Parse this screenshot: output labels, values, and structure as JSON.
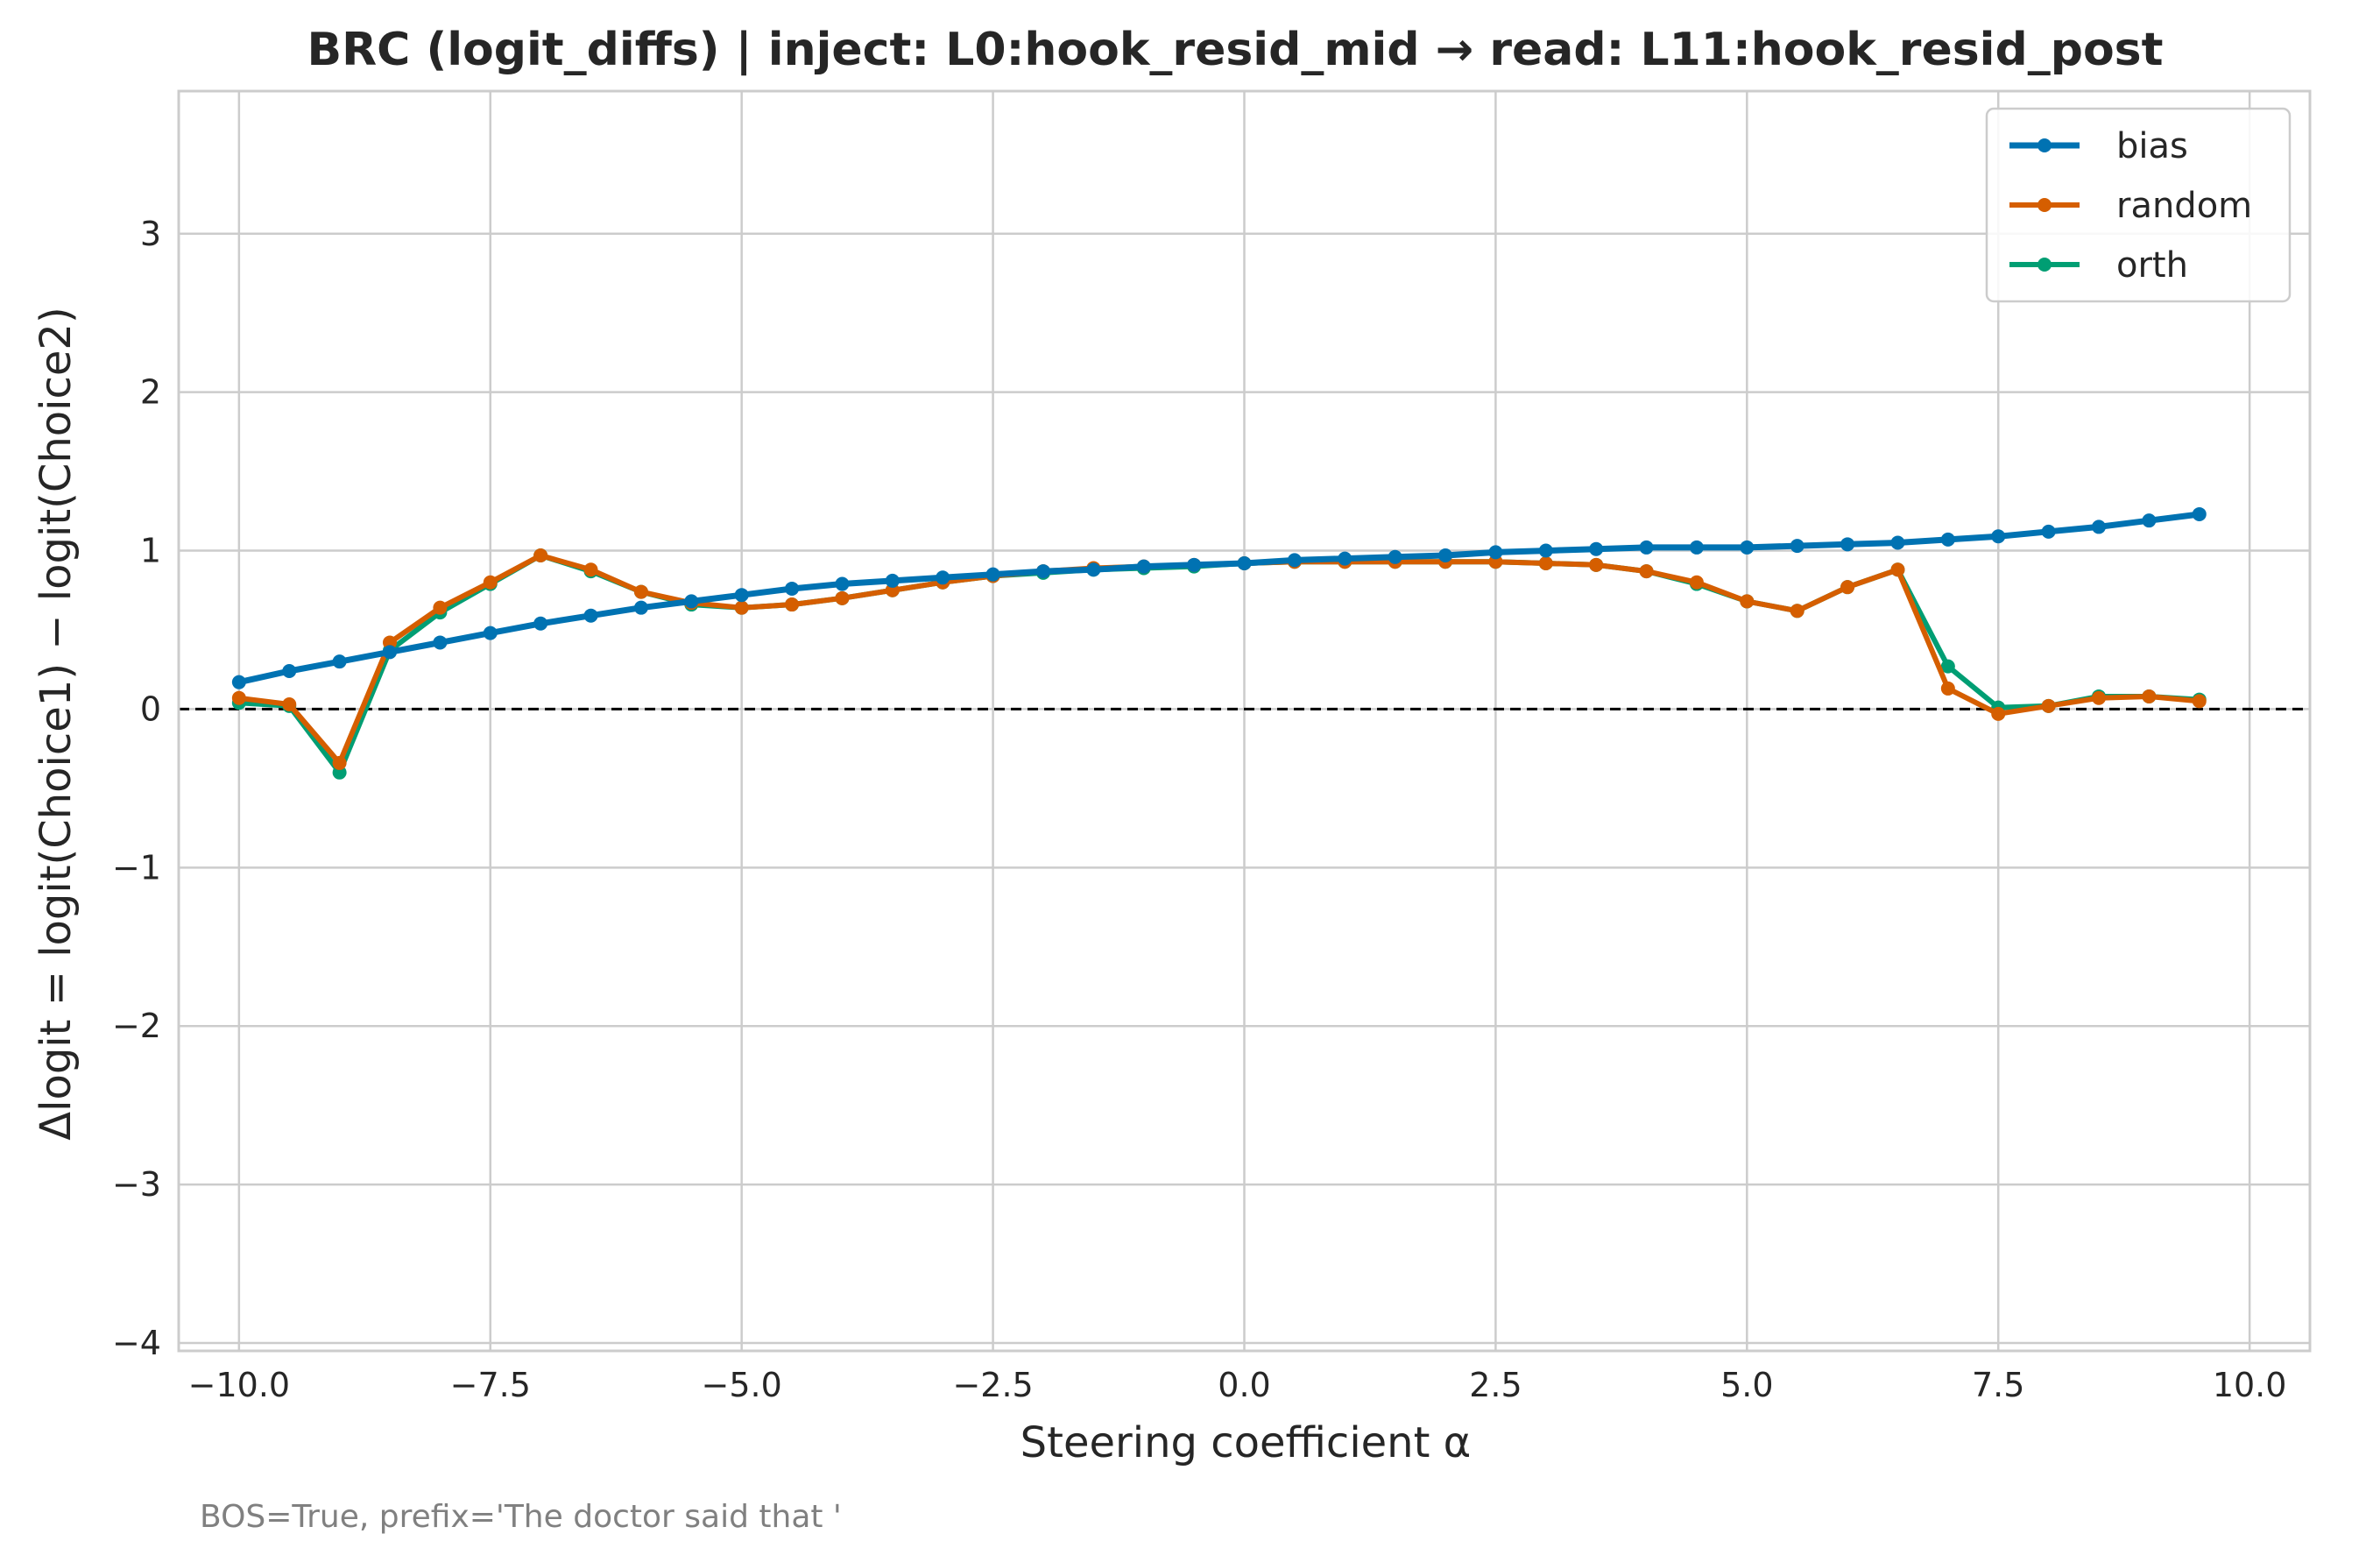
{
  "chart_data": {
    "type": "line",
    "title": "BRC (logit_diffs) | inject: L0:hook_resid_mid → read: L11:hook_resid_post",
    "xlabel": "Steering coefficient α",
    "ylabel": "Δlogit = logit(Choice1) − logit(Choice2)",
    "xlim": [
      -10.6,
      10.6
    ],
    "ylim": [
      -4.05,
      3.9
    ],
    "x_ticks": [
      -10.0,
      -7.5,
      -5.0,
      -2.5,
      0.0,
      2.5,
      5.0,
      7.5,
      10.0
    ],
    "x_tick_labels": [
      "−10.0",
      "−7.5",
      "−5.0",
      "−2.5",
      "0.0",
      "2.5",
      "5.0",
      "7.5",
      "10.0"
    ],
    "y_ticks": [
      -4,
      -3,
      -2,
      -1,
      0,
      1,
      2,
      3
    ],
    "y_tick_labels": [
      "−4",
      "−3",
      "−2",
      "−1",
      "0",
      "1",
      "2",
      "3"
    ],
    "grid": true,
    "legend_position": "top-right",
    "reference_line": {
      "y": 0,
      "style": "dashed",
      "color": "#000000"
    },
    "footnote": "BOS=True, prefix='The doctor said that '",
    "x": [
      -10.0,
      -9.5,
      -9.0,
      -8.5,
      -8.0,
      -7.5,
      -7.0,
      -6.5,
      -6.0,
      -5.5,
      -5.0,
      -4.5,
      -4.0,
      -3.5,
      -3.0,
      -2.5,
      -2.0,
      -1.5,
      -1.0,
      -0.5,
      0.0,
      0.5,
      1.0,
      1.5,
      2.0,
      2.5,
      3.0,
      3.5,
      4.0,
      4.5,
      5.0,
      5.5,
      6.0,
      6.5,
      7.0,
      7.5,
      8.0,
      8.5,
      9.0,
      9.5
    ],
    "series": [
      {
        "name": "bias",
        "color": "#0072B2",
        "values": [
          0.17,
          0.24,
          0.3,
          0.36,
          0.42,
          0.48,
          0.54,
          0.59,
          0.64,
          0.68,
          0.72,
          0.76,
          0.79,
          0.81,
          0.83,
          0.85,
          0.87,
          0.88,
          0.9,
          0.91,
          0.92,
          0.94,
          0.95,
          0.96,
          0.97,
          0.99,
          1.0,
          1.01,
          1.02,
          1.02,
          1.02,
          1.03,
          1.04,
          1.05,
          1.07,
          1.09,
          1.12,
          1.15,
          1.19,
          1.23
        ]
      },
      {
        "name": "random",
        "color": "#D55E00",
        "values": [
          0.07,
          0.03,
          -0.34,
          0.42,
          0.64,
          0.8,
          0.97,
          0.88,
          0.74,
          0.67,
          0.64,
          0.66,
          0.7,
          0.75,
          0.8,
          0.84,
          0.87,
          0.89,
          0.9,
          0.91,
          0.92,
          0.93,
          0.93,
          0.93,
          0.93,
          0.93,
          0.92,
          0.91,
          0.87,
          0.8,
          0.68,
          0.62,
          0.77,
          0.88,
          0.13,
          -0.03,
          0.02,
          0.07,
          0.08,
          0.05
        ]
      },
      {
        "name": "orth",
        "color": "#009E73",
        "values": [
          0.04,
          0.02,
          -0.4,
          0.37,
          0.61,
          0.79,
          0.97,
          0.87,
          0.74,
          0.66,
          0.64,
          0.66,
          0.7,
          0.75,
          0.8,
          0.84,
          0.86,
          0.88,
          0.89,
          0.9,
          0.92,
          0.93,
          0.93,
          0.93,
          0.93,
          0.93,
          0.92,
          0.91,
          0.87,
          0.79,
          0.68,
          0.62,
          0.77,
          0.88,
          0.27,
          0.01,
          0.02,
          0.08,
          0.08,
          0.06
        ]
      }
    ]
  }
}
